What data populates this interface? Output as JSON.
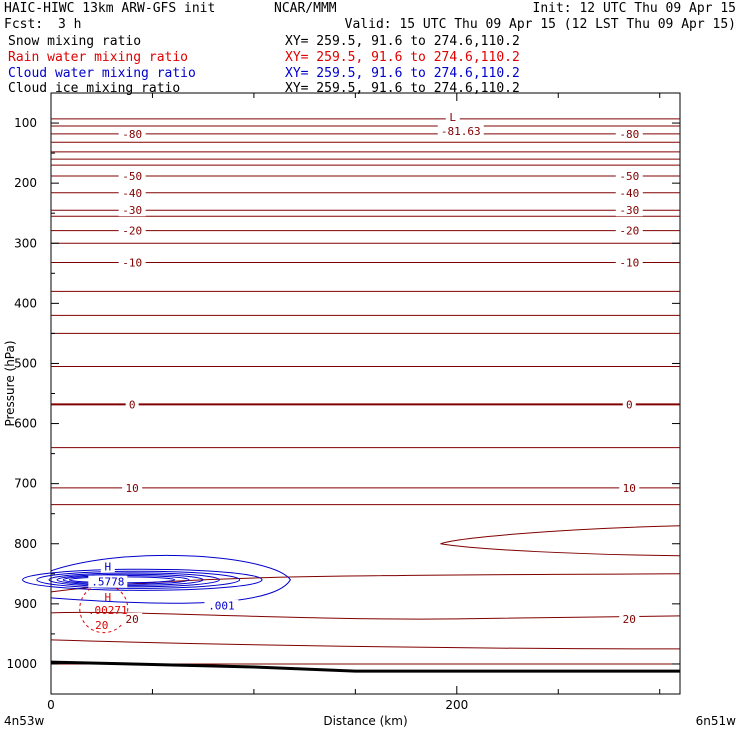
{
  "header": {
    "title": "HAIC-HIWC 13km ARW-GFS init",
    "org": "NCAR/MMM",
    "init": "Init: 12 UTC Thu 09 Apr 15",
    "fcst_label": "Fcst:",
    "fcst_value": "3 h",
    "valid": "Valid: 15 UTC Thu 09 Apr 15 (12 LST Thu 09 Apr 15)",
    "fields": [
      {
        "name": "Snow mixing ratio",
        "xy": "XY= 259.5, 91.6 to 274.6,110.2",
        "color": "#000000"
      },
      {
        "name": "Rain water mixing ratio",
        "xy": "XY= 259.5, 91.6 to 274.6,110.2",
        "color": "#e00000"
      },
      {
        "name": "Cloud water mixing ratio",
        "xy": "XY= 259.5, 91.6 to 274.6,110.2",
        "color": "#0000cc"
      },
      {
        "name": "Cloud ice mixing ratio",
        "xy": "XY= 259.5, 91.6 to 274.6,110.2",
        "color": "#000000"
      }
    ]
  },
  "chart_data": {
    "type": "contour",
    "ylabel": "Pressure (hPa)",
    "xlabel": "Distance (km)",
    "x_range": [
      0,
      310
    ],
    "y_range": [
      1050,
      50
    ],
    "y_ticks": [
      100,
      200,
      300,
      400,
      500,
      600,
      700,
      800,
      900,
      1000
    ],
    "x_ticks": [
      0,
      200
    ],
    "x_end_labels": {
      "left": "4n53w",
      "right": "6n51w"
    },
    "colors": {
      "temperature": "#800000",
      "rain": "#e00000",
      "cloud_water": "#0000cc",
      "terrain": "#000000"
    },
    "temperature_contours": [
      {
        "value": -80,
        "p": 118,
        "label": "-80"
      },
      {
        "value": -50,
        "p": 188,
        "label": "-50"
      },
      {
        "value": -40,
        "p": 216,
        "label": "-40"
      },
      {
        "value": -30,
        "p": 245,
        "label": "-30"
      },
      {
        "value": -20,
        "p": 279,
        "label": "-20"
      },
      {
        "value": -10,
        "p": 332,
        "label": "-10"
      },
      {
        "value": 0,
        "p": 568,
        "label": "0"
      },
      {
        "value": 10,
        "p": 707,
        "label": "10"
      },
      {
        "value": 20,
        "p": 925,
        "label": "20"
      }
    ],
    "markers": [
      {
        "type": "L",
        "value": "-81.63",
        "x": 198,
        "p": 100,
        "color": "#800000"
      },
      {
        "type": "H",
        "value": ".5778",
        "x": 28,
        "p": 858,
        "color": "#0000cc"
      },
      {
        "type": "H",
        "value": ".00271",
        "x": 28,
        "p": 905,
        "color": "#e00000"
      }
    ],
    "cloud_water_labels": [
      ".001"
    ],
    "rain_labels": [
      "20"
    ]
  }
}
